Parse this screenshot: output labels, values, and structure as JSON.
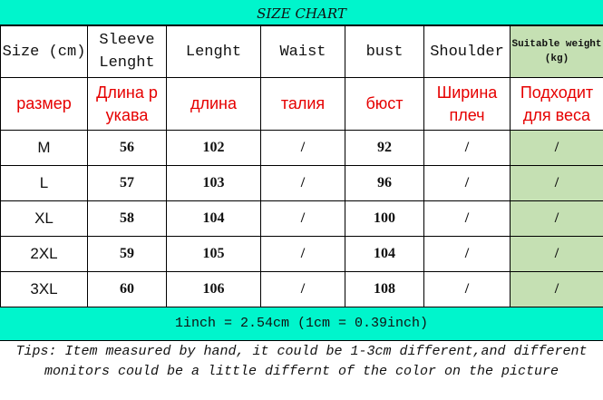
{
  "title": "SIZE CHART",
  "headers": [
    "Size (cm)",
    "Sleeve Lenght",
    "Lenght",
    "Waist",
    "bust",
    "Shoulder",
    "Suitable weight (kg)"
  ],
  "headers_ru": [
    "размер",
    "Длина р укава",
    "длина",
    "талия",
    "бюст",
    "Ширина плеч",
    "Подходит для веса"
  ],
  "rows": [
    [
      "M",
      "56",
      "102",
      "/",
      "92",
      "/",
      "/"
    ],
    [
      "L",
      "57",
      "103",
      "/",
      "96",
      "/",
      "/"
    ],
    [
      "XL",
      "58",
      "104",
      "/",
      "100",
      "/",
      "/"
    ],
    [
      "2XL",
      "59",
      "105",
      "/",
      "104",
      "/",
      "/"
    ],
    [
      "3XL",
      "60",
      "106",
      "/",
      "108",
      "/",
      "/"
    ]
  ],
  "conversion": "1inch = 2.54cm (1cm = 0.39inch)",
  "tips": "Tips: Item measured by hand, it could be 1-3cm different,and different monitors could be a little differnt of the color on the picture",
  "colors": {
    "banner": "#00f5cc",
    "weight_column": "#c5e0b3",
    "russian_text": "#e60000"
  }
}
